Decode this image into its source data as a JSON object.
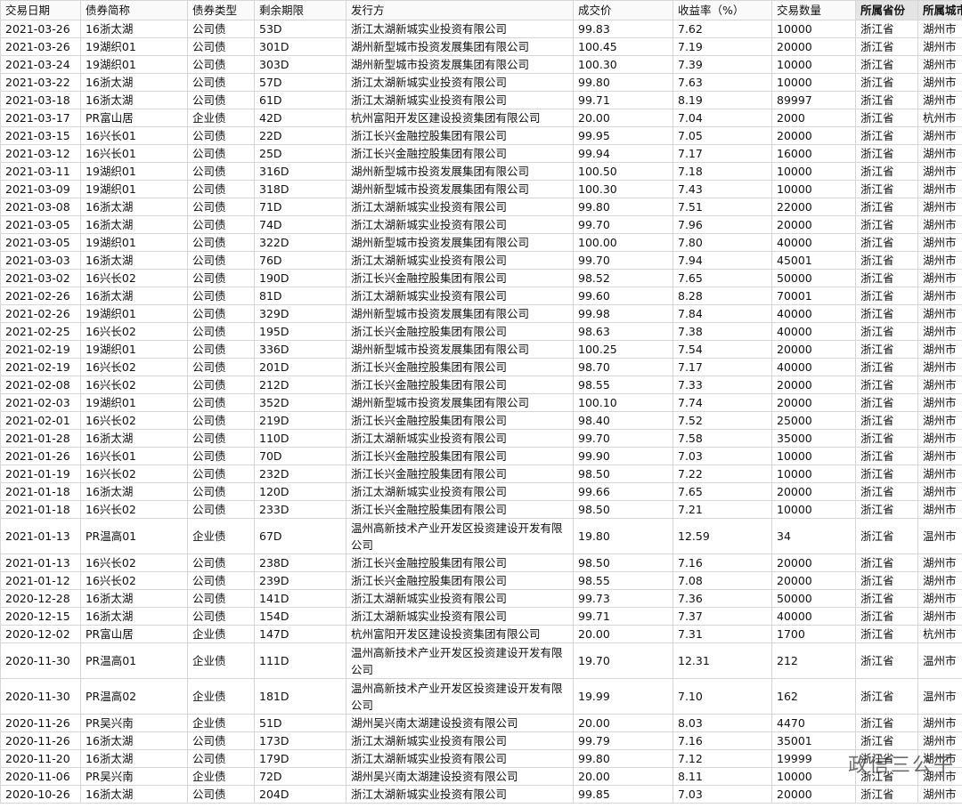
{
  "table": {
    "header": [
      "交易日期",
      "债券简称",
      "债券类型",
      "剩余期限",
      "发行方",
      "成交价",
      "收益率（%）",
      "交易数量",
      "所属省份",
      "所属城市"
    ],
    "rows": [
      [
        "2021-03-26",
        "16浙太湖",
        "公司债",
        "53D",
        "浙江太湖新城实业投资有限公司",
        "99.83",
        "7.62",
        "10000",
        "浙江省",
        "湖州市"
      ],
      [
        "2021-03-26",
        "19湖织01",
        "公司债",
        "301D",
        "湖州新型城市投资发展集团有限公司",
        "100.45",
        "7.19",
        "20000",
        "浙江省",
        "湖州市"
      ],
      [
        "2021-03-24",
        "19湖织01",
        "公司债",
        "303D",
        "湖州新型城市投资发展集团有限公司",
        "100.30",
        "7.39",
        "10000",
        "浙江省",
        "湖州市"
      ],
      [
        "2021-03-22",
        "16浙太湖",
        "公司债",
        "57D",
        "浙江太湖新城实业投资有限公司",
        "99.80",
        "7.63",
        "10000",
        "浙江省",
        "湖州市"
      ],
      [
        "2021-03-18",
        "16浙太湖",
        "公司债",
        "61D",
        "浙江太湖新城实业投资有限公司",
        "99.71",
        "8.19",
        "89997",
        "浙江省",
        "湖州市"
      ],
      [
        "2021-03-17",
        "PR富山居",
        "企业债",
        "42D",
        "杭州富阳开发区建设投资集团有限公司",
        "20.00",
        "7.04",
        "2000",
        "浙江省",
        "杭州市"
      ],
      [
        "2021-03-15",
        "16兴长01",
        "公司债",
        "22D",
        "浙江长兴金融控股集团有限公司",
        "99.95",
        "7.05",
        "20000",
        "浙江省",
        "湖州市"
      ],
      [
        "2021-03-12",
        "16兴长01",
        "公司债",
        "25D",
        "浙江长兴金融控股集团有限公司",
        "99.94",
        "7.17",
        "16000",
        "浙江省",
        "湖州市"
      ],
      [
        "2021-03-11",
        "19湖织01",
        "公司债",
        "316D",
        "湖州新型城市投资发展集团有限公司",
        "100.50",
        "7.18",
        "10000",
        "浙江省",
        "湖州市"
      ],
      [
        "2021-03-09",
        "19湖织01",
        "公司债",
        "318D",
        "湖州新型城市投资发展集团有限公司",
        "100.30",
        "7.43",
        "10000",
        "浙江省",
        "湖州市"
      ],
      [
        "2021-03-08",
        "16浙太湖",
        "公司债",
        "71D",
        "浙江太湖新城实业投资有限公司",
        "99.80",
        "7.51",
        "22000",
        "浙江省",
        "湖州市"
      ],
      [
        "2021-03-05",
        "16浙太湖",
        "公司债",
        "74D",
        "浙江太湖新城实业投资有限公司",
        "99.70",
        "7.96",
        "20000",
        "浙江省",
        "湖州市"
      ],
      [
        "2021-03-05",
        "19湖织01",
        "公司债",
        "322D",
        "湖州新型城市投资发展集团有限公司",
        "100.00",
        "7.80",
        "40000",
        "浙江省",
        "湖州市"
      ],
      [
        "2021-03-03",
        "16浙太湖",
        "公司债",
        "76D",
        "浙江太湖新城实业投资有限公司",
        "99.70",
        "7.94",
        "45001",
        "浙江省",
        "湖州市"
      ],
      [
        "2021-03-02",
        "16兴长02",
        "公司债",
        "190D",
        "浙江长兴金融控股集团有限公司",
        "98.52",
        "7.65",
        "50000",
        "浙江省",
        "湖州市"
      ],
      [
        "2021-02-26",
        "16浙太湖",
        "公司债",
        "81D",
        "浙江太湖新城实业投资有限公司",
        "99.60",
        "8.28",
        "70001",
        "浙江省",
        "湖州市"
      ],
      [
        "2021-02-26",
        "19湖织01",
        "公司债",
        "329D",
        "湖州新型城市投资发展集团有限公司",
        "99.98",
        "7.84",
        "40000",
        "浙江省",
        "湖州市"
      ],
      [
        "2021-02-25",
        "16兴长02",
        "公司债",
        "195D",
        "浙江长兴金融控股集团有限公司",
        "98.63",
        "7.38",
        "40000",
        "浙江省",
        "湖州市"
      ],
      [
        "2021-02-19",
        "19湖织01",
        "公司债",
        "336D",
        "湖州新型城市投资发展集团有限公司",
        "100.25",
        "7.54",
        "20000",
        "浙江省",
        "湖州市"
      ],
      [
        "2021-02-19",
        "16兴长02",
        "公司债",
        "201D",
        "浙江长兴金融控股集团有限公司",
        "98.70",
        "7.17",
        "40000",
        "浙江省",
        "湖州市"
      ],
      [
        "2021-02-08",
        "16兴长02",
        "公司债",
        "212D",
        "浙江长兴金融控股集团有限公司",
        "98.55",
        "7.33",
        "20000",
        "浙江省",
        "湖州市"
      ],
      [
        "2021-02-03",
        "19湖织01",
        "公司债",
        "352D",
        "湖州新型城市投资发展集团有限公司",
        "100.10",
        "7.74",
        "20000",
        "浙江省",
        "湖州市"
      ],
      [
        "2021-02-01",
        "16兴长02",
        "公司债",
        "219D",
        "浙江长兴金融控股集团有限公司",
        "98.40",
        "7.52",
        "25000",
        "浙江省",
        "湖州市"
      ],
      [
        "2021-01-28",
        "16浙太湖",
        "公司债",
        "110D",
        "浙江太湖新城实业投资有限公司",
        "99.70",
        "7.58",
        "35000",
        "浙江省",
        "湖州市"
      ],
      [
        "2021-01-26",
        "16兴长01",
        "公司债",
        "70D",
        "浙江长兴金融控股集团有限公司",
        "99.90",
        "7.03",
        "10000",
        "浙江省",
        "湖州市"
      ],
      [
        "2021-01-19",
        "16兴长02",
        "公司债",
        "232D",
        "浙江长兴金融控股集团有限公司",
        "98.50",
        "7.22",
        "10000",
        "浙江省",
        "湖州市"
      ],
      [
        "2021-01-18",
        "16浙太湖",
        "公司债",
        "120D",
        "浙江太湖新城实业投资有限公司",
        "99.66",
        "7.65",
        "20000",
        "浙江省",
        "湖州市"
      ],
      [
        "2021-01-18",
        "16兴长02",
        "公司债",
        "233D",
        "浙江长兴金融控股集团有限公司",
        "98.50",
        "7.21",
        "10000",
        "浙江省",
        "湖州市"
      ],
      [
        "2021-01-13",
        "PR温高01",
        "企业债",
        "67D",
        "温州高新技术产业开发区投资建设开发有限公司",
        "19.80",
        "12.59",
        "34",
        "浙江省",
        "温州市"
      ],
      [
        "2021-01-13",
        "16兴长02",
        "公司债",
        "238D",
        "浙江长兴金融控股集团有限公司",
        "98.50",
        "7.16",
        "20000",
        "浙江省",
        "湖州市"
      ],
      [
        "2021-01-12",
        "16兴长02",
        "公司债",
        "239D",
        "浙江长兴金融控股集团有限公司",
        "98.55",
        "7.08",
        "20000",
        "浙江省",
        "湖州市"
      ],
      [
        "2020-12-28",
        "16浙太湖",
        "公司债",
        "141D",
        "浙江太湖新城实业投资有限公司",
        "99.73",
        "7.36",
        "50000",
        "浙江省",
        "湖州市"
      ],
      [
        "2020-12-15",
        "16浙太湖",
        "公司债",
        "154D",
        "浙江太湖新城实业投资有限公司",
        "99.71",
        "7.37",
        "40000",
        "浙江省",
        "湖州市"
      ],
      [
        "2020-12-02",
        "PR富山居",
        "企业债",
        "147D",
        "杭州富阳开发区建设投资集团有限公司",
        "20.00",
        "7.31",
        "1700",
        "浙江省",
        "杭州市"
      ],
      [
        "2020-11-30",
        "PR温高01",
        "企业债",
        "111D",
        "温州高新技术产业开发区投资建设开发有限公司",
        "19.70",
        "12.31",
        "212",
        "浙江省",
        "温州市"
      ],
      [
        "2020-11-30",
        "PR温高02",
        "企业债",
        "181D",
        "温州高新技术产业开发区投资建设开发有限公司",
        "19.99",
        "7.10",
        "162",
        "浙江省",
        "温州市"
      ],
      [
        "2020-11-26",
        "PR吴兴南",
        "企业债",
        "51D",
        "湖州吴兴南太湖建设投资有限公司",
        "20.00",
        "8.03",
        "4470",
        "浙江省",
        "湖州市"
      ],
      [
        "2020-11-26",
        "16浙太湖",
        "公司债",
        "173D",
        "浙江太湖新城实业投资有限公司",
        "99.79",
        "7.16",
        "35001",
        "浙江省",
        "湖州市"
      ],
      [
        "2020-11-20",
        "16浙太湖",
        "公司债",
        "179D",
        "浙江太湖新城实业投资有限公司",
        "99.80",
        "7.12",
        "19999",
        "浙江省",
        "湖州市"
      ],
      [
        "2020-11-06",
        "PR吴兴南",
        "企业债",
        "72D",
        "湖州吴兴南太湖建设投资有限公司",
        "20.00",
        "8.11",
        "10000",
        "浙江省",
        "湖州市"
      ],
      [
        "2020-10-26",
        "16浙太湖",
        "公司债",
        "204D",
        "浙江太湖新城实业投资有限公司",
        "99.85",
        "7.03",
        "20000",
        "浙江省",
        "湖州市"
      ]
    ]
  },
  "watermark": "政信三公子"
}
